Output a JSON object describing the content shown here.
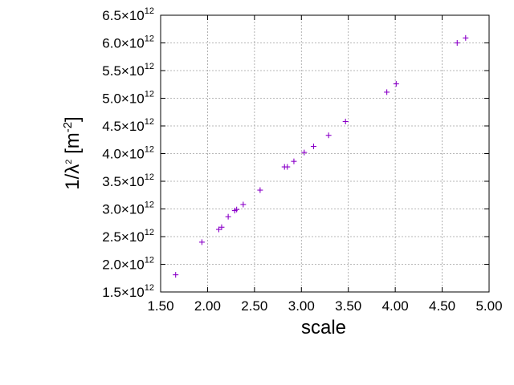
{
  "chart_data": {
    "type": "scatter",
    "title": "",
    "xlabel": "scale",
    "ylabel": {
      "base": "1/λ",
      "exp1": "2",
      "unit_open": " [m",
      "exp2": "-2",
      "unit_close": "]"
    },
    "xlim": [
      1.5,
      5.0
    ],
    "ylim": [
      1500000000000.0,
      6500000000000.0
    ],
    "grid": true,
    "marker": "+",
    "marker_color": "#8b00c9",
    "x_ticks": [
      {
        "value": 1.5,
        "label": "1.50"
      },
      {
        "value": 2.0,
        "label": "2.00"
      },
      {
        "value": 2.5,
        "label": "2.50"
      },
      {
        "value": 3.0,
        "label": "3.00"
      },
      {
        "value": 3.5,
        "label": "3.50"
      },
      {
        "value": 4.0,
        "label": "4.00"
      },
      {
        "value": 4.5,
        "label": "4.50"
      },
      {
        "value": 5.0,
        "label": "5.00"
      }
    ],
    "y_ticks": [
      {
        "value": 1500000000000.0,
        "mantissa": "1.5",
        "times": "×10",
        "exp": "12"
      },
      {
        "value": 2000000000000.0,
        "mantissa": "2.0",
        "times": "×10",
        "exp": "12"
      },
      {
        "value": 2500000000000.0,
        "mantissa": "2.5",
        "times": "×10",
        "exp": "12"
      },
      {
        "value": 3000000000000.0,
        "mantissa": "3.0",
        "times": "×10",
        "exp": "12"
      },
      {
        "value": 3500000000000.0,
        "mantissa": "3.5",
        "times": "×10",
        "exp": "12"
      },
      {
        "value": 4000000000000.0,
        "mantissa": "4.0",
        "times": "×10",
        "exp": "12"
      },
      {
        "value": 4500000000000.0,
        "mantissa": "4.5",
        "times": "×10",
        "exp": "12"
      },
      {
        "value": 5000000000000.0,
        "mantissa": "5.0",
        "times": "×10",
        "exp": "12"
      },
      {
        "value": 5500000000000.0,
        "mantissa": "5.5",
        "times": "×10",
        "exp": "12"
      },
      {
        "value": 6000000000000.0,
        "mantissa": "6.0",
        "times": "×10",
        "exp": "12"
      },
      {
        "value": 6500000000000.0,
        "mantissa": "6.5",
        "times": "×10",
        "exp": "12"
      }
    ],
    "points": [
      {
        "x": 1.66,
        "y": 1810000000000.0
      },
      {
        "x": 1.94,
        "y": 2400000000000.0
      },
      {
        "x": 2.12,
        "y": 2630000000000.0
      },
      {
        "x": 2.15,
        "y": 2670000000000.0
      },
      {
        "x": 2.22,
        "y": 2860000000000.0
      },
      {
        "x": 2.29,
        "y": 2970000000000.0
      },
      {
        "x": 2.31,
        "y": 2990000000000.0
      },
      {
        "x": 2.38,
        "y": 3080000000000.0
      },
      {
        "x": 2.56,
        "y": 3340000000000.0
      },
      {
        "x": 2.82,
        "y": 3760000000000.0
      },
      {
        "x": 2.85,
        "y": 3760000000000.0
      },
      {
        "x": 2.92,
        "y": 3860000000000.0
      },
      {
        "x": 3.03,
        "y": 4020000000000.0
      },
      {
        "x": 3.13,
        "y": 4130000000000.0
      },
      {
        "x": 3.29,
        "y": 4330000000000.0
      },
      {
        "x": 3.47,
        "y": 4580000000000.0
      },
      {
        "x": 3.91,
        "y": 5110000000000.0
      },
      {
        "x": 4.01,
        "y": 5260000000000.0
      },
      {
        "x": 4.66,
        "y": 6000000000000.0
      },
      {
        "x": 4.75,
        "y": 6090000000000.0
      }
    ]
  }
}
